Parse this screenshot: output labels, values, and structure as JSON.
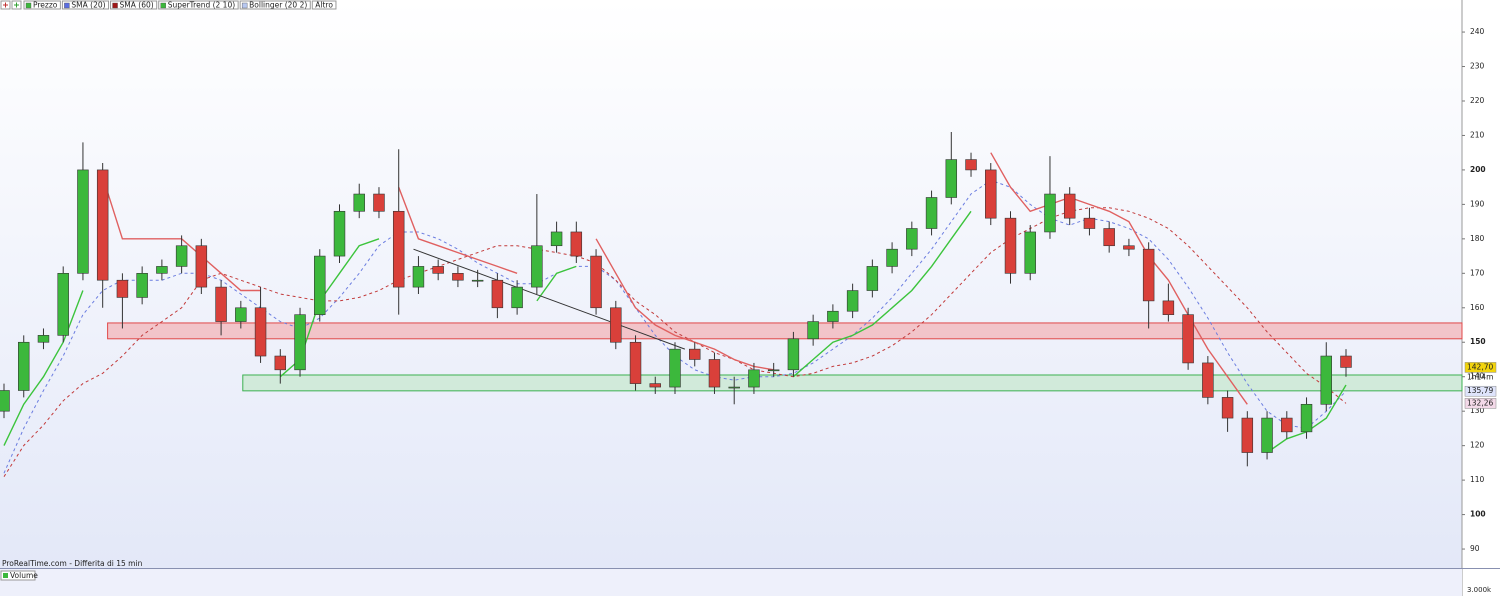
{
  "chart_data": {
    "type": "candlestick",
    "legend": [
      {
        "name": "Prezzo",
        "color": "#3cb83c"
      },
      {
        "name": "SMA (20)",
        "color": "#5b6ee0"
      },
      {
        "name": "SMA (60)",
        "color": "#a01818"
      },
      {
        "name": "SuperTrend (2 10)",
        "color": "#3cb83c"
      },
      {
        "name": "Bollinger (20 2)",
        "color": "#b8c8f0"
      },
      {
        "name": "Altro"
      }
    ],
    "watermark": "ProRealTime.com - Differita di 15 min",
    "volume_label": "Volume",
    "volume_tick": "3.000k",
    "countdown": "1h14m",
    "ylim": [
      84.5,
      249.3
    ],
    "yticks": [
      90,
      100,
      110,
      120,
      130,
      140,
      150,
      160,
      170,
      180,
      190,
      200,
      210,
      220,
      230,
      240
    ],
    "up_color": "#3cb83c",
    "down_color": "#d9403a",
    "open": [
      130,
      136,
      150,
      152,
      170,
      200,
      168,
      163,
      170,
      172,
      178,
      166,
      156,
      160,
      146,
      142,
      158,
      175,
      188,
      193,
      188,
      166,
      172,
      170,
      168,
      168,
      160,
      166,
      178,
      182,
      175,
      160,
      150,
      138,
      137,
      148,
      145,
      137,
      137,
      142,
      142,
      151,
      156,
      159,
      165,
      172,
      177,
      183,
      192,
      203,
      200,
      186,
      170,
      182,
      193,
      186,
      183,
      178,
      177,
      162,
      158,
      144,
      134,
      128,
      118,
      128,
      124,
      132,
      146
    ],
    "high": [
      138,
      152,
      154,
      172,
      208,
      202,
      170,
      172,
      174,
      181,
      180,
      168,
      162,
      166,
      148,
      160,
      177,
      190,
      196,
      195,
      206,
      175,
      174,
      172,
      171,
      170,
      168,
      193,
      185,
      185,
      177,
      162,
      152,
      140,
      150,
      150,
      147,
      140,
      144,
      144,
      153,
      158,
      161,
      167,
      174,
      179,
      185,
      194,
      211,
      205,
      202,
      188,
      184,
      204,
      195,
      189,
      185,
      180,
      179,
      167,
      160,
      146,
      136,
      130,
      130,
      130,
      134,
      150,
      148
    ],
    "low": [
      128,
      134,
      148,
      150,
      168,
      160,
      154,
      161,
      168,
      170,
      164,
      152,
      154,
      144,
      138,
      140,
      156,
      173,
      186,
      186,
      158,
      164,
      168,
      166,
      166,
      157,
      158,
      164,
      176,
      173,
      158,
      148,
      136,
      135,
      135,
      143,
      135,
      132,
      135,
      140,
      140,
      149,
      154,
      157,
      163,
      170,
      175,
      181,
      190,
      198,
      184,
      167,
      168,
      180,
      184,
      181,
      176,
      175,
      154,
      156,
      142,
      132,
      124,
      114,
      116,
      122,
      122,
      130,
      140
    ],
    "close": [
      136,
      150,
      152,
      170,
      200,
      168,
      163,
      170,
      172,
      178,
      166,
      156,
      160,
      146,
      142,
      158,
      175,
      188,
      193,
      188,
      166,
      172,
      170,
      168,
      168,
      160,
      166,
      178,
      182,
      175,
      160,
      150,
      138,
      137,
      148,
      145,
      137,
      137,
      142,
      142,
      151,
      156,
      159,
      165,
      172,
      177,
      183,
      192,
      203,
      200,
      186,
      170,
      182,
      193,
      186,
      183,
      178,
      177,
      162,
      158,
      144,
      134,
      128,
      118,
      128,
      124,
      132,
      146,
      142.7
    ],
    "overlays": [
      {
        "color": "#6b7de0",
        "dash": "3,3",
        "values": [
          112,
          125,
          136,
          146,
          158,
          165,
          168,
          168,
          168,
          170,
          170,
          168,
          164,
          160,
          156,
          154,
          157,
          163,
          170,
          178,
          182,
          182,
          180,
          177,
          173,
          170,
          167,
          167,
          170,
          172,
          172,
          168,
          160,
          152,
          146,
          142,
          140,
          139,
          140,
          140,
          141,
          144,
          148,
          152,
          157,
          163,
          170,
          177,
          185,
          193,
          197,
          195,
          190,
          186,
          184,
          186,
          185,
          183,
          180,
          174,
          166,
          157,
          147,
          138,
          130,
          126,
          125,
          130,
          135.79
        ]
      },
      {
        "color": "#c23a3a",
        "dash": "3,3",
        "values": [
          111,
          120,
          126,
          133,
          138,
          141,
          146,
          152,
          156,
          160,
          168,
          170,
          168,
          166,
          164,
          163,
          162,
          162,
          163,
          165,
          168,
          170,
          172,
          174,
          176,
          178,
          178,
          177,
          176,
          175,
          173,
          168,
          162,
          158,
          153,
          150,
          147,
          145,
          142,
          141,
          140,
          141,
          143,
          144,
          146,
          149,
          153,
          158,
          164,
          170,
          176,
          180,
          183,
          186,
          188,
          189,
          189,
          188,
          186,
          183,
          178,
          172,
          166,
          160,
          153,
          147,
          141,
          137,
          132.26
        ]
      },
      {
        "color": "#3cc43c",
        "values": [
          120,
          132,
          140,
          150,
          165,
          null,
          null,
          null,
          null,
          null,
          null,
          null,
          null,
          null,
          140,
          145,
          162,
          170,
          178,
          180,
          null,
          null,
          null,
          null,
          null,
          null,
          null,
          162,
          170,
          172,
          null,
          null,
          null,
          null,
          null,
          null,
          null,
          null,
          null,
          null,
          140,
          145,
          150,
          152,
          155,
          160,
          165,
          172,
          180,
          188,
          null,
          null,
          null,
          null,
          null,
          null,
          null,
          null,
          null,
          null,
          null,
          null,
          null,
          null,
          118,
          122,
          124,
          128,
          137.6
        ]
      },
      {
        "color": "#e06060",
        "values": [
          null,
          null,
          null,
          null,
          null,
          198,
          180,
          180,
          180,
          180,
          175,
          170,
          165,
          165,
          null,
          null,
          null,
          null,
          null,
          null,
          195,
          180,
          178,
          176,
          174,
          172,
          170,
          null,
          null,
          null,
          180,
          170,
          160,
          155,
          152,
          150,
          148,
          145,
          143,
          142,
          null,
          null,
          null,
          null,
          null,
          null,
          null,
          null,
          null,
          null,
          205,
          195,
          188,
          190,
          192,
          190,
          188,
          185,
          175,
          168,
          158,
          148,
          140,
          132,
          null,
          null,
          null,
          null,
          null
        ]
      }
    ],
    "zones": [
      {
        "x0": 5.25,
        "low": 151,
        "high": 155.6,
        "color": "#f4a5a8",
        "stroke": "#e04848"
      },
      {
        "x0": 12.1,
        "low": 135.9,
        "high": 140.5,
        "color": "#bfe6c4",
        "stroke": "#3cb050"
      }
    ],
    "trendline": {
      "x": [
        20.75,
        34.5
      ],
      "y": [
        177,
        148
      ],
      "color": "#333333"
    },
    "price_labels": [
      {
        "value": 142.7,
        "label": "142,70",
        "color": "#f2d40c"
      },
      {
        "value": 135.79,
        "label": "135,79",
        "color": "#dfe4fb"
      },
      {
        "value": 132.26,
        "label": "132,26",
        "color": "#f3d9e8"
      }
    ]
  }
}
